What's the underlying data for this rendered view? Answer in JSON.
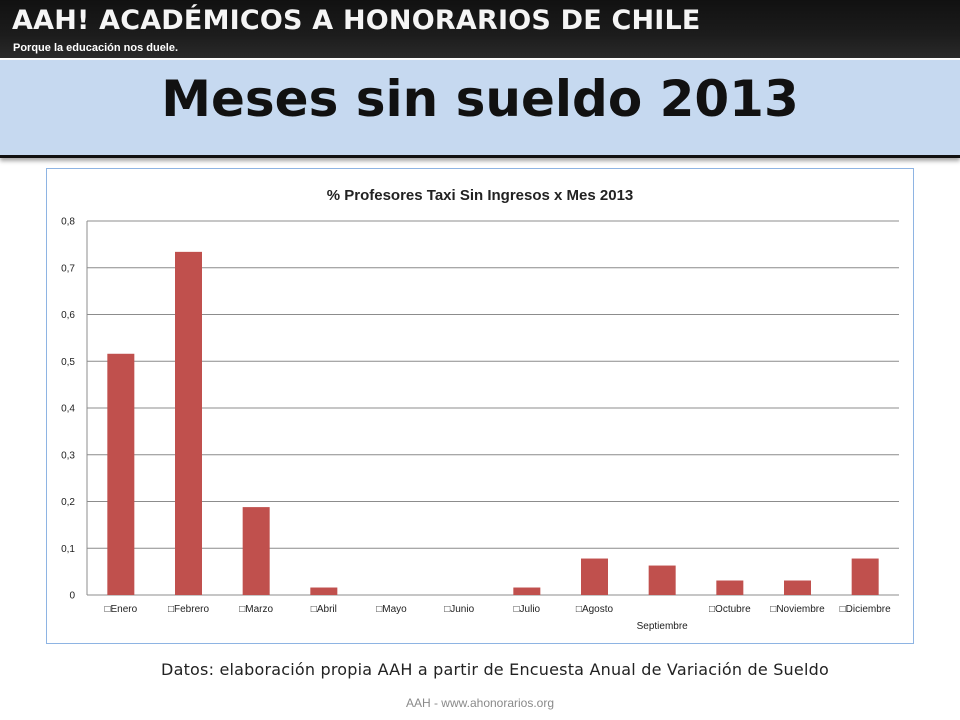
{
  "banner": {
    "title": "AAH! ACADÉMICOS A HONORARIOS DE CHILE",
    "tagline": "Porque la educación nos duele."
  },
  "slide": {
    "title": "Meses sin sueldo 2013",
    "source_note": "Datos: elaboración propia AAH a partir de Encuesta Anual de Variación de Sueldo",
    "footer": "AAH - www.ahonorarios.org"
  },
  "colors": {
    "bar": "#c0504d",
    "grid": "#8c8c8c",
    "title_band": "#c6d9f0"
  },
  "chart_data": {
    "type": "bar",
    "title": "% Profesores Taxi Sin Ingresos x Mes 2013",
    "xlabel": "",
    "ylabel": "",
    "categories": [
      "Enero",
      "Febrero",
      "Marzo",
      "Abril",
      "Mayo",
      "Junio",
      "Julio",
      "Agosto",
      "Septiembre",
      "Octubre",
      "Noviembre",
      "Diciembre"
    ],
    "category_labels": [
      "□Enero",
      "□Febrero",
      "□Marzo",
      "□Abril",
      "□Mayo",
      "□Junio",
      "□Julio",
      "□Agosto",
      "Septiembre",
      "□Octubre",
      "□Noviembre",
      "□Diciembre"
    ],
    "values": [
      0.516,
      0.734,
      0.188,
      0.016,
      0,
      0,
      0.016,
      0.078,
      0.063,
      0.031,
      0.031,
      0.078
    ],
    "ylim": [
      0,
      0.8
    ],
    "yticks": [
      0,
      0.1,
      0.2,
      0.3,
      0.4,
      0.5,
      0.6,
      0.7,
      0.8
    ],
    "ytick_labels": [
      "0",
      "0,1",
      "0,2",
      "0,3",
      "0,4",
      "0,5",
      "0,6",
      "0,7",
      "0,8"
    ],
    "grid": true,
    "legend": "none"
  }
}
